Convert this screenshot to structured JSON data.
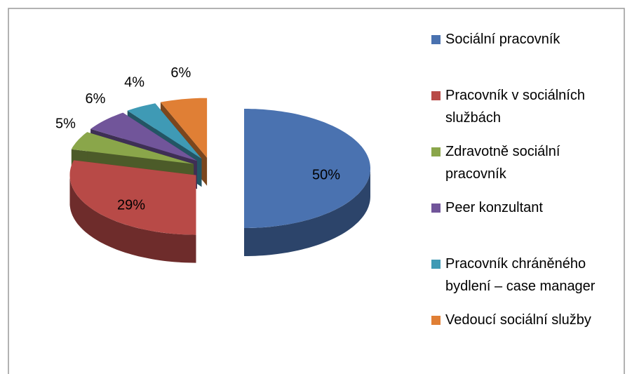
{
  "chart_data": {
    "type": "pie",
    "categories": [
      "Sociální pracovník",
      "Pracovník v sociálních službách",
      "Zdravotně sociální pracovník",
      "Peer konzultant",
      "Pracovník chráněného bydlení – case manager",
      "Vedoucí sociální služby"
    ],
    "values": [
      50,
      29,
      5,
      6,
      4,
      6
    ],
    "value_labels": [
      "50%",
      "29%",
      "5%",
      "6%",
      "4%",
      "6%"
    ],
    "colors": [
      "#4a72b0",
      "#b84a47",
      "#8aa64a",
      "#71559a",
      "#3f9ab5",
      "#e07f35"
    ],
    "legend": "right"
  }
}
